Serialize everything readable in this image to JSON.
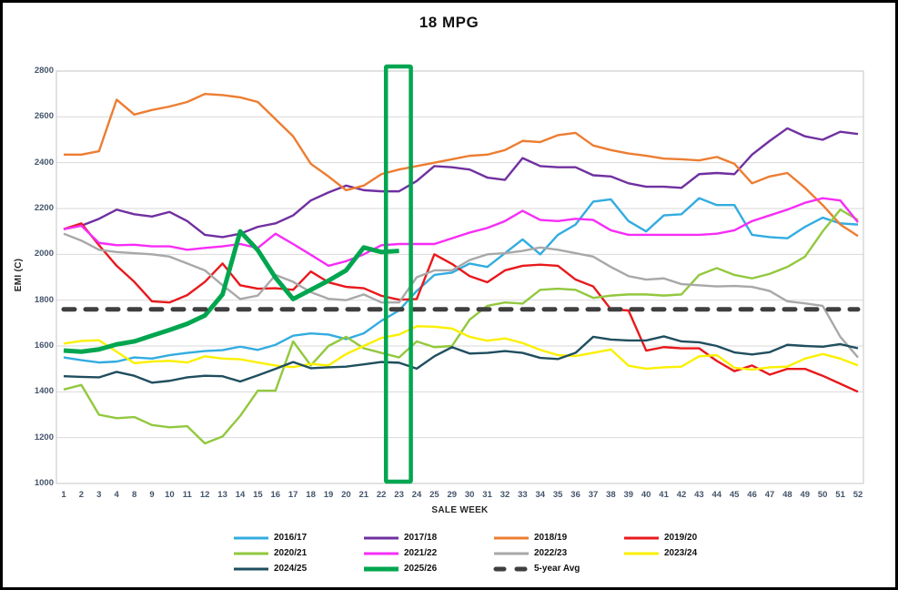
{
  "chart_data": {
    "type": "line",
    "title": "18 MPG",
    "xlabel": "SALE WEEK",
    "ylabel": "EMI (C)",
    "ylim": [
      1000,
      2800
    ],
    "ytick_step": 200,
    "y_ticks": [
      1000,
      1200,
      1400,
      1600,
      1800,
      2000,
      2200,
      2400,
      2600,
      2800
    ],
    "grid": true,
    "legend_position": "bottom",
    "categories": [
      1,
      2,
      3,
      4,
      8,
      9,
      10,
      11,
      12,
      13,
      14,
      15,
      16,
      17,
      18,
      19,
      20,
      21,
      22,
      23,
      24,
      25,
      29,
      30,
      31,
      32,
      33,
      34,
      35,
      36,
      37,
      38,
      39,
      40,
      41,
      42,
      43,
      44,
      45,
      46,
      47,
      48,
      49,
      50,
      51,
      52
    ],
    "series": [
      {
        "name": "2016/17",
        "color": "#33ACE0",
        "stroke_width": 2.4,
        "values": [
          1550,
          1538,
          1528,
          1532,
          1550,
          1545,
          1560,
          1570,
          1578,
          1582,
          1597,
          1583,
          1605,
          1645,
          1655,
          1650,
          1630,
          1655,
          1710,
          1755,
          1840,
          1910,
          1920,
          1960,
          1945,
          2005,
          2065,
          2000,
          2085,
          2130,
          2230,
          2240,
          2145,
          2100,
          2170,
          2175,
          2245,
          2215,
          2215,
          2085,
          2075,
          2070,
          2120,
          2160,
          2135,
          2130
        ]
      },
      {
        "name": "2017/18",
        "color": "#7030A0",
        "stroke_width": 2.4,
        "values": [
          2110,
          2125,
          2155,
          2195,
          2175,
          2165,
          2185,
          2145,
          2085,
          2075,
          2090,
          2120,
          2135,
          2170,
          2235,
          2270,
          2300,
          2280,
          2275,
          2275,
          2320,
          2385,
          2380,
          2370,
          2335,
          2325,
          2420,
          2385,
          2380,
          2380,
          2345,
          2340,
          2310,
          2295,
          2295,
          2290,
          2350,
          2355,
          2350,
          2435,
          2495,
          2550,
          2515,
          2500,
          2535,
          2525
        ]
      },
      {
        "name": "2018/19",
        "color": "#ED7D31",
        "stroke_width": 2.4,
        "values": [
          2435,
          2435,
          2450,
          2675,
          2610,
          2630,
          2645,
          2665,
          2700,
          2695,
          2685,
          2665,
          2590,
          2515,
          2395,
          2340,
          2280,
          2300,
          2350,
          2370,
          2385,
          2400,
          2415,
          2430,
          2435,
          2455,
          2495,
          2490,
          2520,
          2530,
          2475,
          2455,
          2440,
          2430,
          2418,
          2415,
          2410,
          2425,
          2395,
          2310,
          2340,
          2355,
          2290,
          2215,
          2130,
          2080
        ]
      },
      {
        "name": "2019/20",
        "color": "#E8191C",
        "stroke_width": 2.4,
        "values": [
          2110,
          2135,
          2040,
          1950,
          1880,
          1795,
          1790,
          1822,
          1880,
          1960,
          1865,
          1850,
          1852,
          1845,
          1925,
          1878,
          1858,
          1852,
          1819,
          1802,
          1805,
          2000,
          1958,
          1905,
          1878,
          1930,
          1950,
          1955,
          1950,
          1890,
          1860,
          1760,
          1755,
          1580,
          1595,
          1590,
          1590,
          1535,
          1490,
          1515,
          1475,
          1500,
          1500,
          1470,
          1435,
          1400
        ]
      },
      {
        "name": "2020/21",
        "color": "#92C83E",
        "stroke_width": 2.4,
        "values": [
          1410,
          1430,
          1300,
          1285,
          1290,
          1255,
          1245,
          1250,
          1175,
          1205,
          1295,
          1405,
          1405,
          1620,
          1515,
          1600,
          1640,
          1590,
          1570,
          1550,
          1620,
          1595,
          1600,
          1715,
          1775,
          1790,
          1785,
          1845,
          1850,
          1845,
          1810,
          1820,
          1825,
          1825,
          1820,
          1825,
          1910,
          1940,
          1910,
          1895,
          1915,
          1945,
          1990,
          2100,
          2195,
          2150
        ]
      },
      {
        "name": "2021/22",
        "color": "#F62DF6",
        "stroke_width": 2.4,
        "values": [
          2110,
          2125,
          2050,
          2040,
          2042,
          2035,
          2035,
          2020,
          2028,
          2035,
          2045,
          2028,
          2090,
          2045,
          1998,
          1950,
          1970,
          2000,
          2040,
          2045,
          2045,
          2045,
          2070,
          2095,
          2115,
          2145,
          2190,
          2150,
          2145,
          2155,
          2150,
          2105,
          2085,
          2085,
          2085,
          2085,
          2085,
          2090,
          2105,
          2145,
          2170,
          2195,
          2225,
          2245,
          2235,
          2140
        ]
      },
      {
        "name": "2022/23",
        "color": "#A8A8A8",
        "stroke_width": 2.4,
        "values": [
          2090,
          2060,
          2020,
          2010,
          2005,
          2000,
          1990,
          1960,
          1930,
          1865,
          1805,
          1820,
          1910,
          1880,
          1835,
          1806,
          1800,
          1825,
          1790,
          1790,
          1900,
          1930,
          1930,
          1975,
          2000,
          2005,
          2015,
          2030,
          2020,
          2005,
          1990,
          1945,
          1905,
          1890,
          1895,
          1870,
          1865,
          1860,
          1862,
          1858,
          1840,
          1795,
          1786,
          1775,
          1640,
          1550
        ]
      },
      {
        "name": "2023/24",
        "color": "#FAF000",
        "stroke_width": 2.4,
        "values": [
          1610,
          1622,
          1625,
          1575,
          1525,
          1532,
          1535,
          1528,
          1555,
          1545,
          1542,
          1528,
          1515,
          1508,
          1522,
          1515,
          1565,
          1600,
          1635,
          1650,
          1686,
          1684,
          1676,
          1640,
          1623,
          1633,
          1613,
          1583,
          1560,
          1556,
          1570,
          1585,
          1514,
          1501,
          1507,
          1510,
          1555,
          1560,
          1505,
          1497,
          1507,
          1510,
          1545,
          1565,
          1545,
          1515
        ]
      },
      {
        "name": "2024/25",
        "color": "#1F4E5F",
        "stroke_width": 2.4,
        "values": [
          1468,
          1465,
          1463,
          1487,
          1470,
          1440,
          1448,
          1463,
          1470,
          1468,
          1445,
          1472,
          1500,
          1530,
          1503,
          1507,
          1510,
          1520,
          1530,
          1527,
          1501,
          1555,
          1595,
          1567,
          1570,
          1578,
          1570,
          1548,
          1543,
          1570,
          1640,
          1628,
          1624,
          1624,
          1642,
          1620,
          1616,
          1600,
          1572,
          1563,
          1573,
          1605,
          1600,
          1597,
          1608,
          1590
        ]
      },
      {
        "name": "2025/26",
        "color": "#00A64F",
        "stroke_width": 5,
        "values": [
          1580,
          1575,
          1585,
          1607,
          1620,
          1645,
          1670,
          1697,
          1733,
          1825,
          2100,
          2018,
          1898,
          1805,
          1845,
          1885,
          1930,
          2030,
          2010,
          2015
        ]
      },
      {
        "name": "5-year Avg",
        "color": "#3F3F3F",
        "stroke_width": 5,
        "dash": "12 12",
        "linecap": "round",
        "constant": 1760
      }
    ],
    "highlight_box": {
      "from_week": 22,
      "to_week": 23,
      "color": "#00A651"
    },
    "legend_rows": [
      [
        "2016/17",
        "2017/18",
        "2018/19",
        "2019/20"
      ],
      [
        "2020/21",
        "2021/22",
        "2022/23",
        "2023/24"
      ],
      [
        "2024/25",
        "2025/26",
        "5-year Avg"
      ]
    ]
  }
}
